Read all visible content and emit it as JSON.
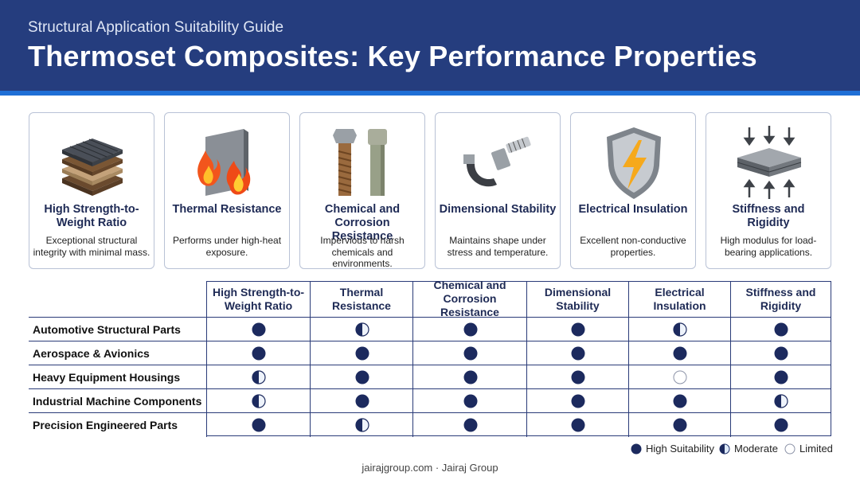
{
  "header": {
    "subtitle": "Structural Application Suitability Guide",
    "title": "Thermoset Composites: Key Performance Properties",
    "background_color": "#253d7e",
    "accent_color": "#1f6fd6"
  },
  "properties": [
    {
      "title": "High Strength-to-Weight Ratio",
      "description": "Exceptional structural integrity with minimal mass.",
      "icon": "layered-laminate-icon"
    },
    {
      "title": "Thermal Resistance",
      "description": "Performs under high-heat exposure.",
      "icon": "flame-panel-icon"
    },
    {
      "title": "Chemical and Corrosion Resistance",
      "description": "Impervious to harsh chemicals and environments.",
      "icon": "bolts-icon"
    },
    {
      "title": "Dimensional Stability",
      "description": "Maintains shape under stress and temperature.",
      "icon": "micrometer-icon"
    },
    {
      "title": "Electrical Insulation",
      "description": "Excellent non-conductive properties.",
      "icon": "lightning-shield-icon"
    },
    {
      "title": "Stiffness and Rigidity",
      "description": "High modulus for load-bearing applications.",
      "icon": "compressed-plate-icon"
    }
  ],
  "matrix": {
    "columns": [
      "High Strength-to-Weight Ratio",
      "Thermal Resistance",
      "Chemical and Corrosion Resistance",
      "Dimensional Stability",
      "Electrical Insulation",
      "Stiffness and Rigidity"
    ],
    "rows": [
      {
        "label": "Automotive Structural Parts",
        "ratings": [
          "high",
          "moderate",
          "high",
          "high",
          "moderate",
          "high"
        ]
      },
      {
        "label": "Aerospace & Avionics",
        "ratings": [
          "high",
          "high",
          "high",
          "high",
          "high",
          "high"
        ]
      },
      {
        "label": "Heavy Equipment Housings",
        "ratings": [
          "moderate",
          "high",
          "high",
          "high",
          "limited",
          "high"
        ]
      },
      {
        "label": "Industrial Machine Components",
        "ratings": [
          "moderate",
          "high",
          "high",
          "high",
          "high",
          "moderate"
        ]
      },
      {
        "label": "Precision Engineered Parts",
        "ratings": [
          "high",
          "moderate",
          "high",
          "high",
          "high",
          "high"
        ]
      }
    ]
  },
  "legend": {
    "high": "High Suitability",
    "moderate": "Moderate",
    "limited": "Limited",
    "dark_color": "#1c2a5e",
    "moderate_color": "#1f6fd6"
  },
  "footer": {
    "text": "jairajgroup.com · Jairaj Group"
  }
}
